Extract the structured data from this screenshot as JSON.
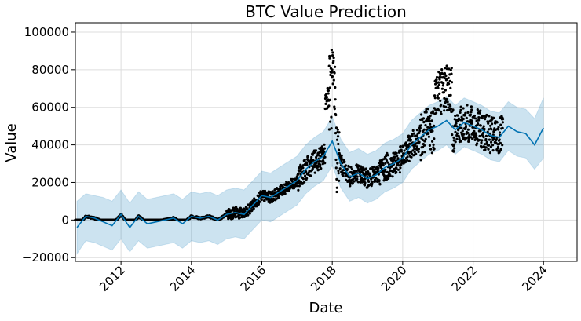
{
  "chart_data": {
    "type": "line",
    "title": "BTC Value Prediction",
    "xlabel": "Date",
    "ylabel": "Value",
    "xlim": [
      "2010-09-15",
      "2024-12-15"
    ],
    "ylim": [
      -22000,
      105000
    ],
    "x_ticks": [
      "2012",
      "2014",
      "2016",
      "2018",
      "2020",
      "2022",
      "2024"
    ],
    "y_ticks": [
      "−20000",
      "0",
      "20000",
      "40000",
      "60000",
      "80000",
      "100000"
    ],
    "grid": true,
    "legend": "none",
    "colors": {
      "forecast": "#0072B2",
      "interval": "#0072B2",
      "observed": "#000000",
      "grid": "#dddddd"
    },
    "series": [
      {
        "kind": "forecast-line",
        "x": [
          "2010-10-01",
          "2011-01-01",
          "2011-04-01",
          "2011-07-01",
          "2011-10-01",
          "2012-01-01",
          "2012-04-01",
          "2012-07-01",
          "2012-10-01",
          "2013-01-01",
          "2013-04-01",
          "2013-07-01",
          "2013-10-01",
          "2014-01-01",
          "2014-04-01",
          "2014-07-01",
          "2014-10-01",
          "2015-01-01",
          "2015-04-01",
          "2015-07-01",
          "2015-10-01",
          "2016-01-01",
          "2016-04-01",
          "2016-07-01",
          "2016-10-01",
          "2017-01-01",
          "2017-04-01",
          "2017-07-01",
          "2017-10-01",
          "2018-01-01",
          "2018-04-01",
          "2018-07-01",
          "2018-10-01",
          "2019-01-01",
          "2019-04-01",
          "2019-07-01",
          "2019-10-01",
          "2020-01-01",
          "2020-04-01",
          "2020-07-01",
          "2020-10-01",
          "2021-01-01",
          "2021-04-01",
          "2021-07-01",
          "2021-10-01",
          "2022-01-01",
          "2022-04-01",
          "2022-07-01",
          "2022-10-01",
          "2023-01-01",
          "2023-04-01",
          "2023-07-01",
          "2023-10-01",
          "2024-01-01"
        ],
        "y": [
          -4000,
          2000,
          1000,
          -1000,
          -3000,
          3000,
          -4000,
          2000,
          -2000,
          -1000,
          0,
          1000,
          -2000,
          2000,
          1000,
          2000,
          0,
          3000,
          4000,
          3000,
          8000,
          13000,
          12000,
          15000,
          18000,
          21000,
          27000,
          31000,
          34000,
          42000,
          30000,
          23000,
          25000,
          22000,
          24000,
          28000,
          30000,
          33000,
          40000,
          44000,
          48000,
          50000,
          53000,
          48000,
          52000,
          50000,
          48000,
          45000,
          44000,
          50000,
          47000,
          46000,
          40000,
          49000
        ]
      },
      {
        "kind": "forecast-interval",
        "x": [
          "2010-10-01",
          "2011-01-01",
          "2011-04-01",
          "2011-07-01",
          "2011-10-01",
          "2012-01-01",
          "2012-04-01",
          "2012-07-01",
          "2012-10-01",
          "2013-01-01",
          "2013-04-01",
          "2013-07-01",
          "2013-10-01",
          "2014-01-01",
          "2014-04-01",
          "2014-07-01",
          "2014-10-01",
          "2015-01-01",
          "2015-04-01",
          "2015-07-01",
          "2015-10-01",
          "2016-01-01",
          "2016-04-01",
          "2016-07-01",
          "2016-10-01",
          "2017-01-01",
          "2017-04-01",
          "2017-07-01",
          "2017-10-01",
          "2018-01-01",
          "2018-04-01",
          "2018-07-01",
          "2018-10-01",
          "2019-01-01",
          "2019-04-01",
          "2019-07-01",
          "2019-10-01",
          "2020-01-01",
          "2020-04-01",
          "2020-07-01",
          "2020-10-01",
          "2021-01-01",
          "2021-04-01",
          "2021-07-01",
          "2021-10-01",
          "2022-01-01",
          "2022-04-01",
          "2022-07-01",
          "2022-10-01",
          "2023-01-01",
          "2023-04-01",
          "2023-07-01",
          "2023-10-01",
          "2024-01-01"
        ],
        "lower": [
          -18000,
          -11000,
          -12000,
          -14000,
          -16000,
          -10000,
          -17000,
          -11000,
          -15000,
          -14000,
          -13000,
          -12000,
          -15000,
          -11000,
          -12000,
          -11000,
          -13000,
          -10000,
          -9000,
          -10000,
          -5000,
          0,
          -1000,
          2000,
          5000,
          8000,
          14000,
          18000,
          21000,
          29000,
          17000,
          10000,
          12000,
          9000,
          11000,
          15000,
          17000,
          20000,
          27000,
          31000,
          35000,
          37000,
          40000,
          35000,
          39000,
          37000,
          35000,
          32000,
          31000,
          37000,
          34000,
          33000,
          27000,
          33000
        ],
        "upper": [
          10000,
          14000,
          13000,
          12000,
          10000,
          16000,
          9000,
          15000,
          11000,
          12000,
          13000,
          14000,
          11000,
          15000,
          14000,
          15000,
          13000,
          16000,
          17000,
          16000,
          21000,
          26000,
          25000,
          28000,
          31000,
          34000,
          40000,
          44000,
          47000,
          55000,
          43000,
          36000,
          38000,
          35000,
          37000,
          41000,
          43000,
          46000,
          53000,
          57000,
          61000,
          63000,
          66000,
          61000,
          65000,
          63000,
          61000,
          58000,
          57000,
          63000,
          60000,
          59000,
          54000,
          65000
        ]
      }
    ]
  }
}
